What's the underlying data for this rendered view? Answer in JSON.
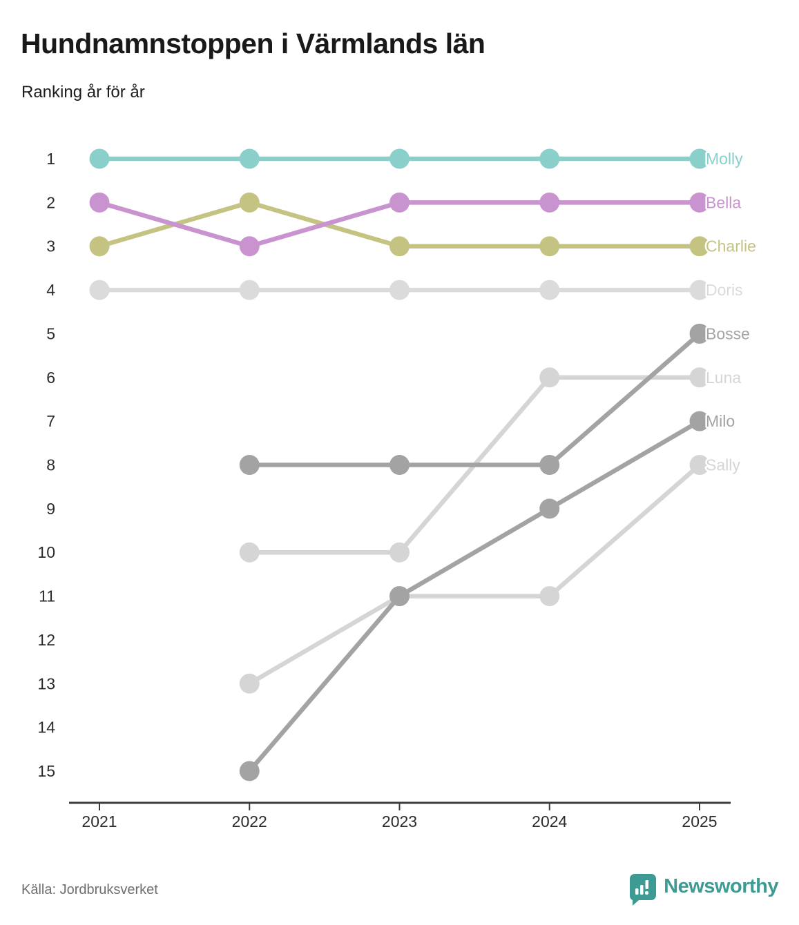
{
  "header": {
    "title": "Hundnamnstoppen i Värmlands län",
    "subtitle": "Ranking år för år"
  },
  "footer": {
    "source": "Källa: Jordbruksverket",
    "brand": "Newsworthy",
    "brand_color": "#3d9b93"
  },
  "chart_data": {
    "type": "line",
    "subtype": "bump-ranking",
    "title": "Hundnamnstoppen i Värmlands län",
    "xlabel": "",
    "ylabel": "",
    "x": [
      2021,
      2022,
      2023,
      2024,
      2025
    ],
    "yticks": [
      1,
      2,
      3,
      4,
      5,
      6,
      7,
      8,
      9,
      10,
      11,
      12,
      13,
      14,
      15
    ],
    "ylim": [
      1,
      15
    ],
    "y_axis_inverted": true,
    "grid": false,
    "legend": "end-of-line-labels",
    "axis_color": "#3b3b3b",
    "series": [
      {
        "name": "Molly",
        "color": "#8bcfca",
        "values": [
          1,
          1,
          1,
          1,
          1
        ]
      },
      {
        "name": "Bella",
        "color": "#c893ce",
        "values": [
          2,
          3,
          2,
          2,
          2
        ]
      },
      {
        "name": "Charlie",
        "color": "#c5c382",
        "values": [
          3,
          2,
          3,
          3,
          3
        ]
      },
      {
        "name": "Doris",
        "color": "#dbdbdb",
        "values": [
          4,
          4,
          4,
          4,
          4
        ]
      },
      {
        "name": "Bosse",
        "color": "#a3a3a3",
        "values": [
          null,
          8,
          8,
          8,
          5
        ]
      },
      {
        "name": "Luna",
        "color": "#d5d5d5",
        "values": [
          null,
          10,
          10,
          6,
          6
        ]
      },
      {
        "name": "Milo",
        "color": "#a3a3a3",
        "values": [
          null,
          15,
          11,
          9,
          7
        ]
      },
      {
        "name": "Sally",
        "color": "#d5d5d5",
        "values": [
          null,
          13,
          11,
          11,
          8
        ]
      }
    ]
  }
}
